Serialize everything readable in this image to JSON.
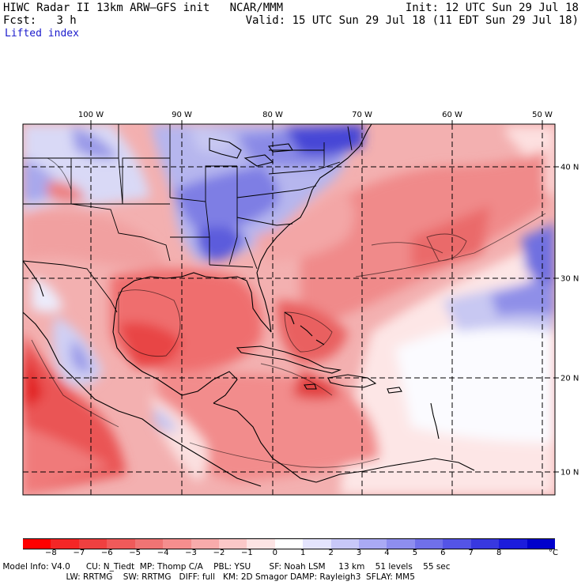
{
  "header": {
    "model_title": "HIWC Radar II 13km ARW–GFS init",
    "org": "NCAR/MMM",
    "init": "Init: 12 UTC Sun 29 Jul 18",
    "fcst_label": "Fcst:",
    "fcst_value": "3 h",
    "valid": "Valid: 15 UTC Sun 29 Jul 18 (11 EDT Sun 29 Jul 18)",
    "variable": "Lifted index"
  },
  "map": {
    "lon_labels": [
      "100 W",
      "90 W",
      "80 W",
      "70 W",
      "60 W",
      "50 W"
    ],
    "lat_labels": [
      "40 N",
      "30 N",
      "20 N",
      "10 N"
    ],
    "extent": {
      "lon_range": [
        -107.5,
        -48.5
      ],
      "lat_range": [
        7.5,
        45.2
      ]
    },
    "colors": {
      "negative": "#e6262b",
      "positive": "#2323e6",
      "neutral": "#fdfdfd"
    }
  },
  "colorbar": {
    "unit": "°C",
    "tick_labels": [
      "−8",
      "−7",
      "−6",
      "−5",
      "−4",
      "−3",
      "−2",
      "−1",
      "0",
      "1",
      "2",
      "3",
      "4",
      "5",
      "6",
      "7",
      "8"
    ],
    "colors": [
      "#ff0000",
      "#f42626",
      "#ef4040",
      "#f05a5a",
      "#f07474",
      "#f58e8e",
      "#f8abab",
      "#fbc8c8",
      "#fde4e4",
      "#ffffff",
      "#e4e4fd",
      "#c8c8f8",
      "#aaaaf4",
      "#8e8eef",
      "#7070ea",
      "#5454e6",
      "#3838e0",
      "#1c1cdc",
      "#0000cc"
    ]
  },
  "footer": {
    "line1": " Model Info: V4.0      CU: N_Tiedt  MP: Thomp C/A    PBL: YSU       SF: Noah LSM     13 km    51 levels    55 sec",
    "line2": "                         LW: RRTMG    SW: RRTMG   DIFF: full   KM: 2D Smagor DAMP: Rayleigh3  SFLAY: MM5"
  }
}
